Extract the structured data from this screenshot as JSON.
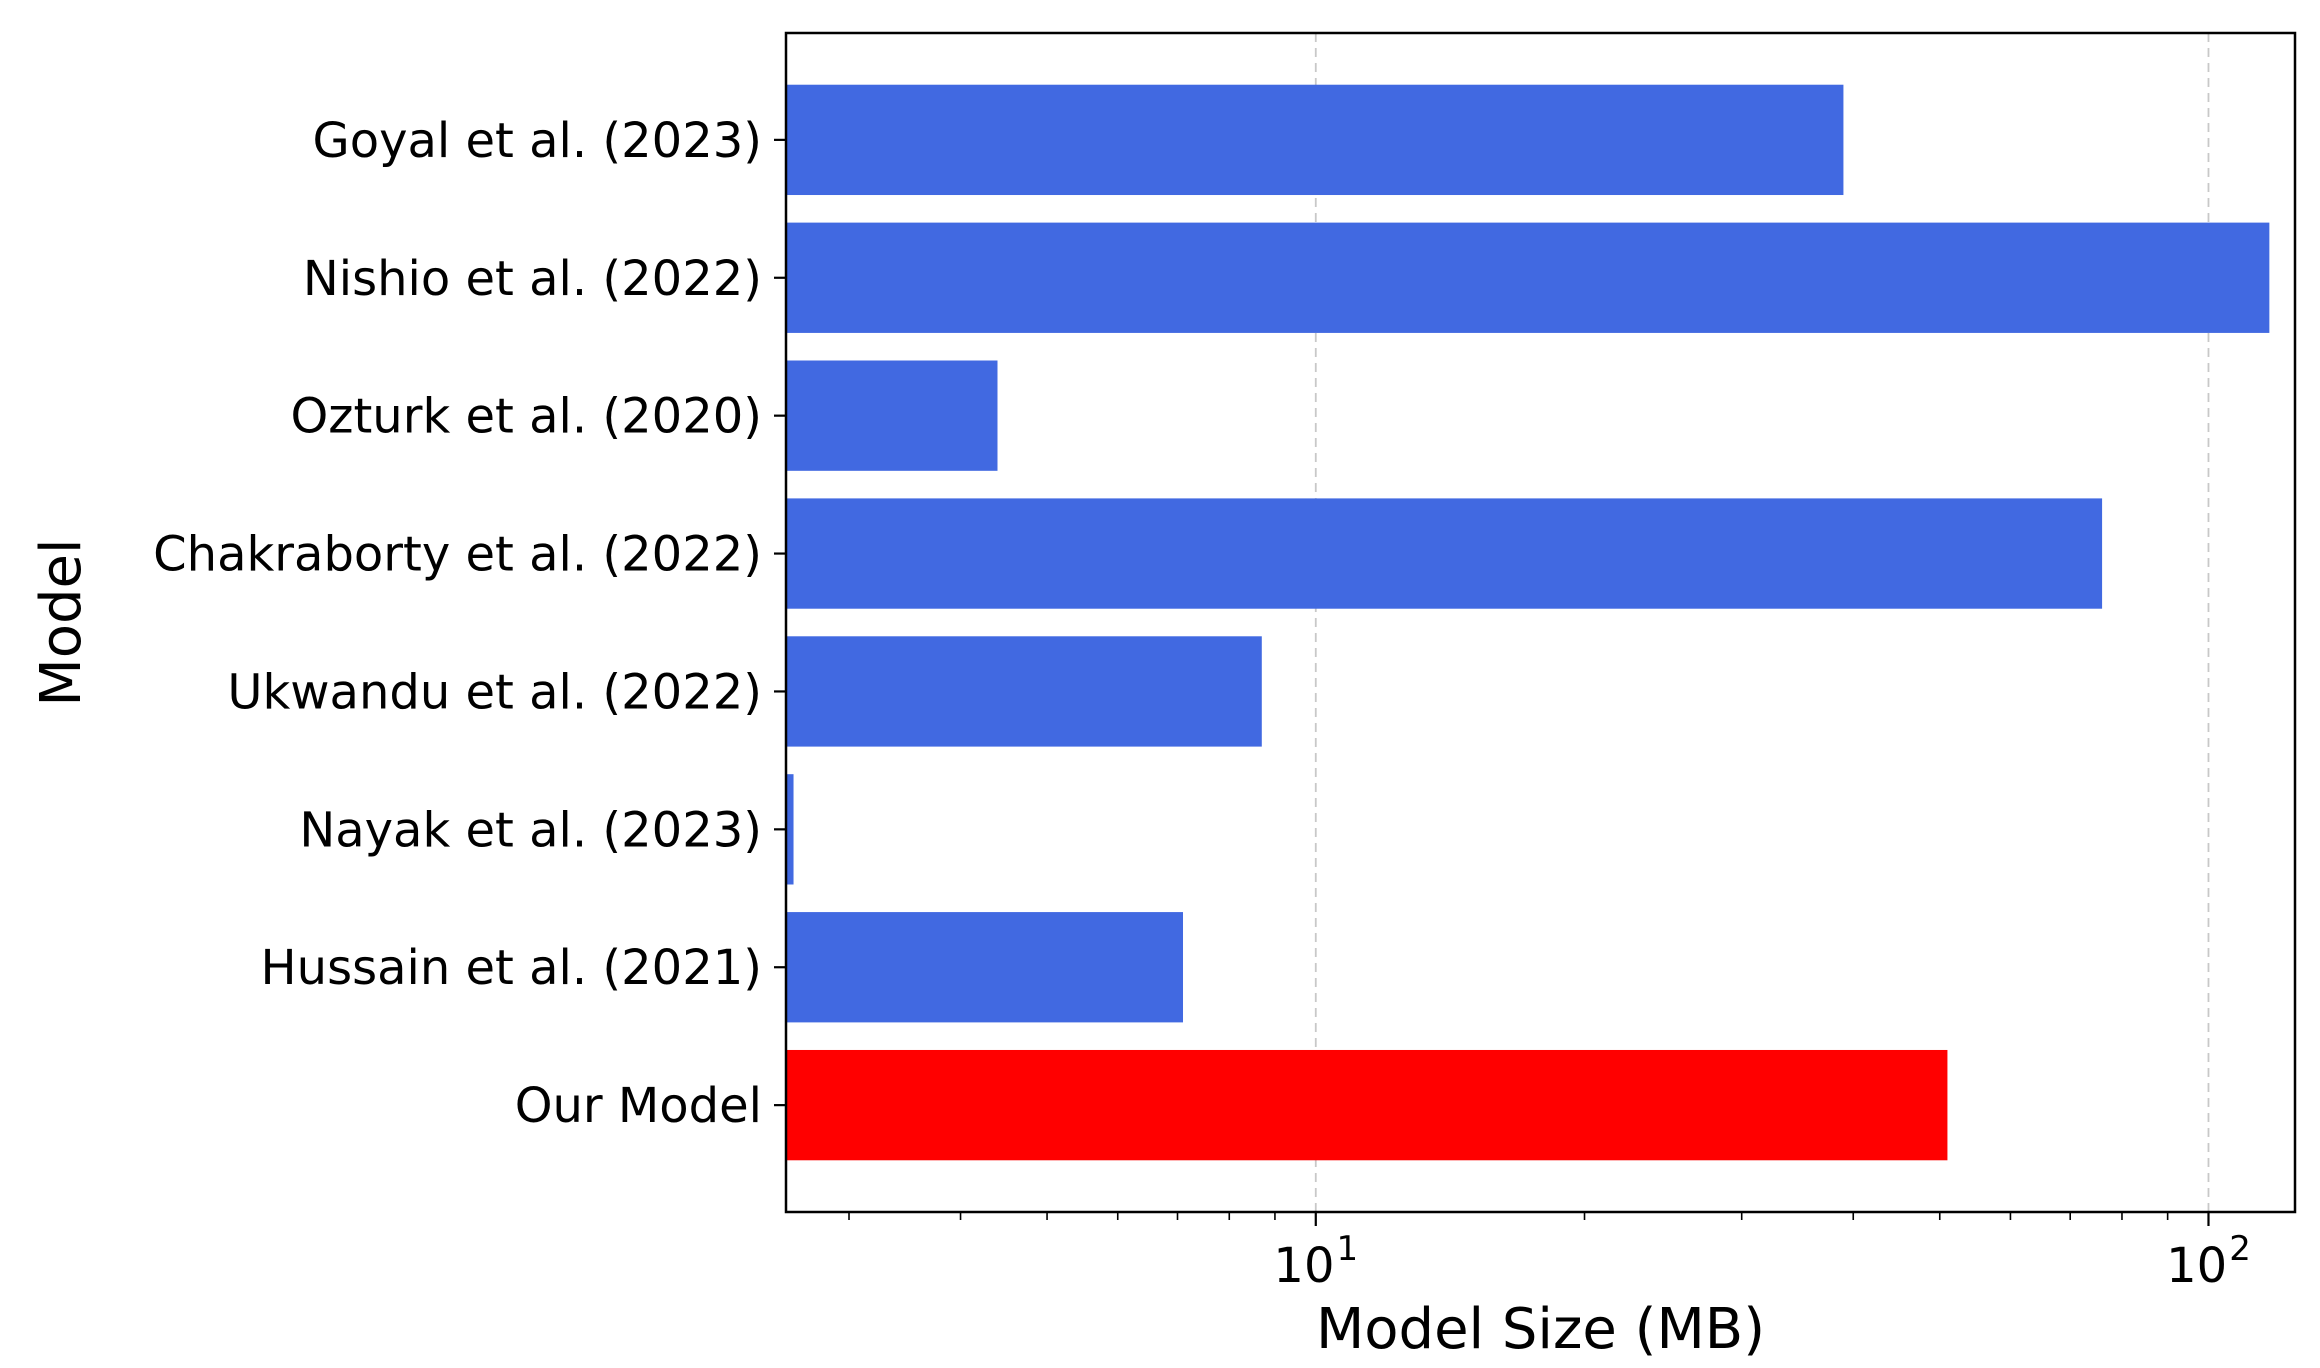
{
  "chart_data": {
    "type": "bar",
    "orientation": "horizontal",
    "title": "",
    "xlabel": "Model Size (MB)",
    "ylabel": "Model",
    "x_scale": "log",
    "xlim": [
      2.55,
      125
    ],
    "x_tick_base": "10",
    "x_ticks": [
      {
        "exponent": "1",
        "value": 10
      },
      {
        "exponent": "2",
        "value": 100
      }
    ],
    "grid": "x-major-dashed",
    "categories": [
      "Goyal et al. (2023)",
      "Nishio et al. (2022)",
      "Ozturk et al. (2020)",
      "Chakraborty et al. (2022)",
      "Ukwandu et al. (2022)",
      "Nayak et al. (2023)",
      "Hussain et al. (2021)",
      "Our Model"
    ],
    "values": [
      39,
      117,
      4.4,
      76,
      8.7,
      2.6,
      7.1,
      51
    ],
    "colors": [
      "#4169e1",
      "#4169e1",
      "#4169e1",
      "#4169e1",
      "#4169e1",
      "#4169e1",
      "#4169e1",
      "#ff0000"
    ]
  }
}
